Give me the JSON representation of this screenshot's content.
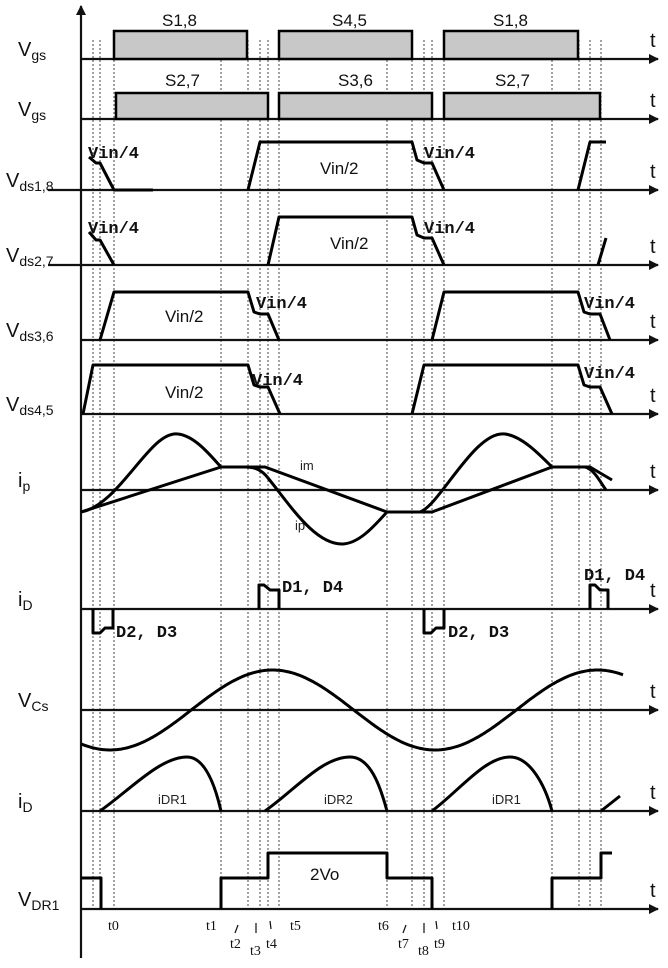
{
  "axis_t": "t",
  "rows": [
    {
      "name": "V",
      "sub": "gs"
    },
    {
      "name": "V",
      "sub": "gs"
    },
    {
      "name": "V",
      "sub": "ds1,8"
    },
    {
      "name": "V",
      "sub": "ds2,7"
    },
    {
      "name": "V",
      "sub": "ds3,6"
    },
    {
      "name": "V",
      "sub": "ds4,5"
    },
    {
      "name": "i",
      "sub": "p"
    },
    {
      "name": "i",
      "sub": "D"
    },
    {
      "name": "V",
      "sub": "Cs"
    },
    {
      "name": "i",
      "sub": "D"
    },
    {
      "name": "V",
      "sub": "DR1"
    }
  ],
  "gate_labels": {
    "row1": [
      "S1,8",
      "S4,5",
      "S1,8"
    ],
    "row2": [
      "S2,7",
      "S3,6",
      "S2,7"
    ]
  },
  "annotations": {
    "vin4": "Vin/4",
    "vin2": "Vin/2",
    "im": "im",
    "ip": "ip",
    "d14": "D1, D4",
    "d23": "D2, D3",
    "idr1": "iDR1",
    "idr2": "iDR2",
    "two_vo": "2Vo"
  },
  "time_labels": [
    "t0",
    "t1",
    "t2",
    "t3",
    "t4",
    "t5",
    "t6",
    "t7",
    "t8",
    "t9",
    "t10"
  ]
}
